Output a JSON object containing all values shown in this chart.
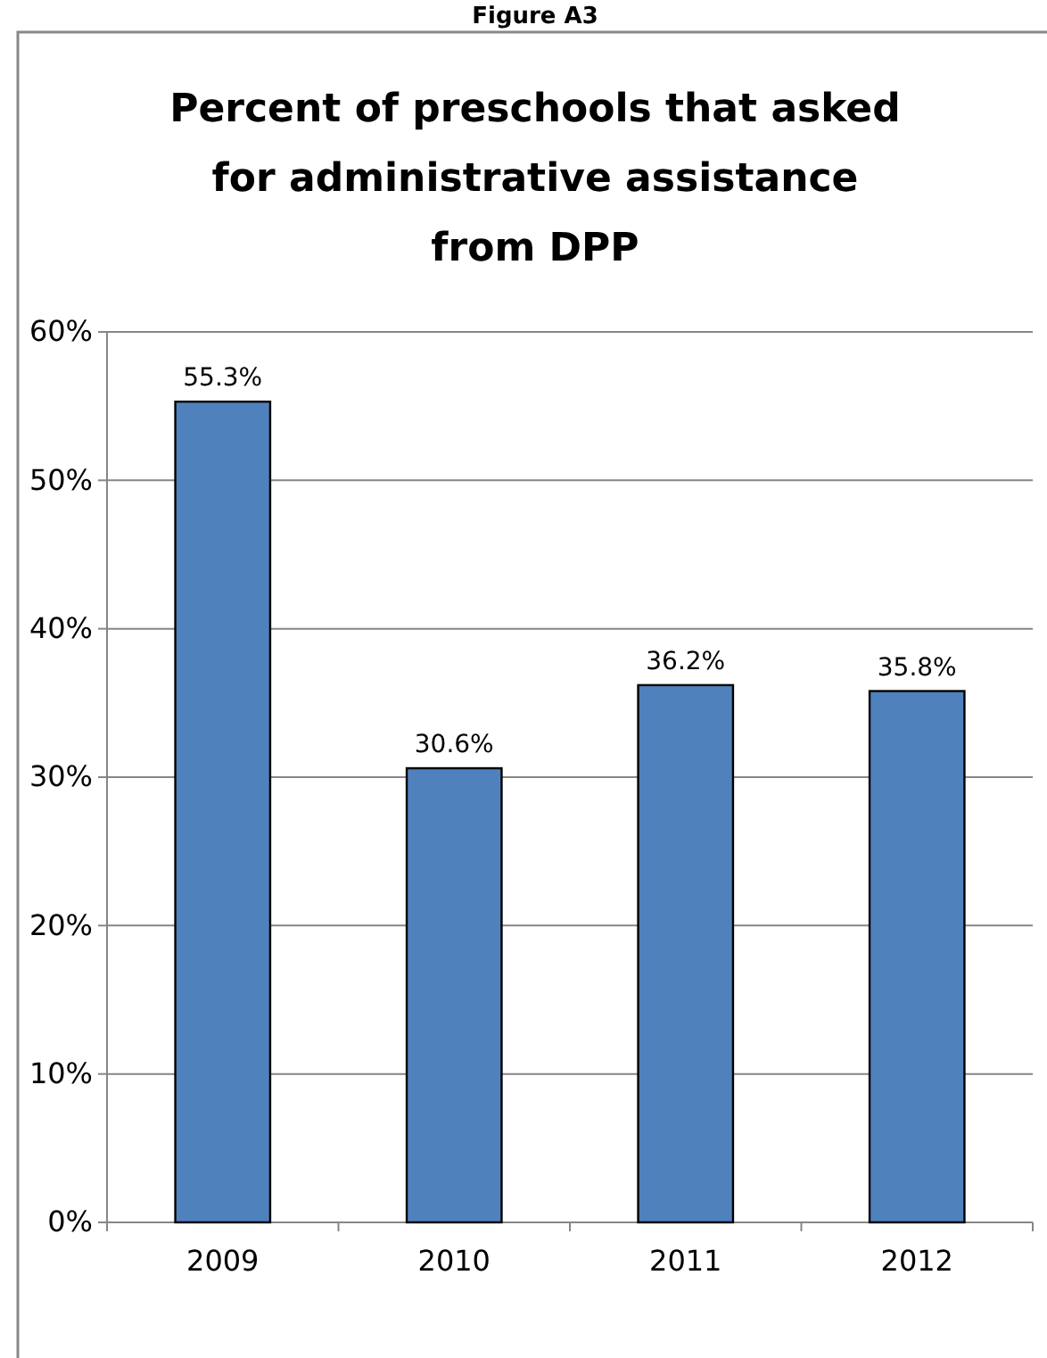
{
  "chart_data": {
    "type": "bar",
    "title": "Percent of preschools that asked for administrative assistance from DPP",
    "annotations": [
      "Figure A3"
    ],
    "categories": [
      "2009",
      "2010",
      "2011",
      "2012"
    ],
    "values": [
      55.3,
      30.6,
      36.2,
      35.8
    ],
    "value_labels": [
      "55.3%",
      "30.6%",
      "36.2%",
      "35.8%"
    ],
    "color": "#4f81bd",
    "ylim": [
      0,
      60
    ],
    "yticks": [
      {
        "value": 0,
        "label": "0%"
      },
      {
        "value": 10,
        "label": "10%"
      },
      {
        "value": 20,
        "label": "20%"
      },
      {
        "value": 30,
        "label": "30%"
      },
      {
        "value": 40,
        "label": "40%"
      },
      {
        "value": 50,
        "label": "50%"
      },
      {
        "value": 60,
        "label": "60%"
      }
    ],
    "grid": "y"
  }
}
